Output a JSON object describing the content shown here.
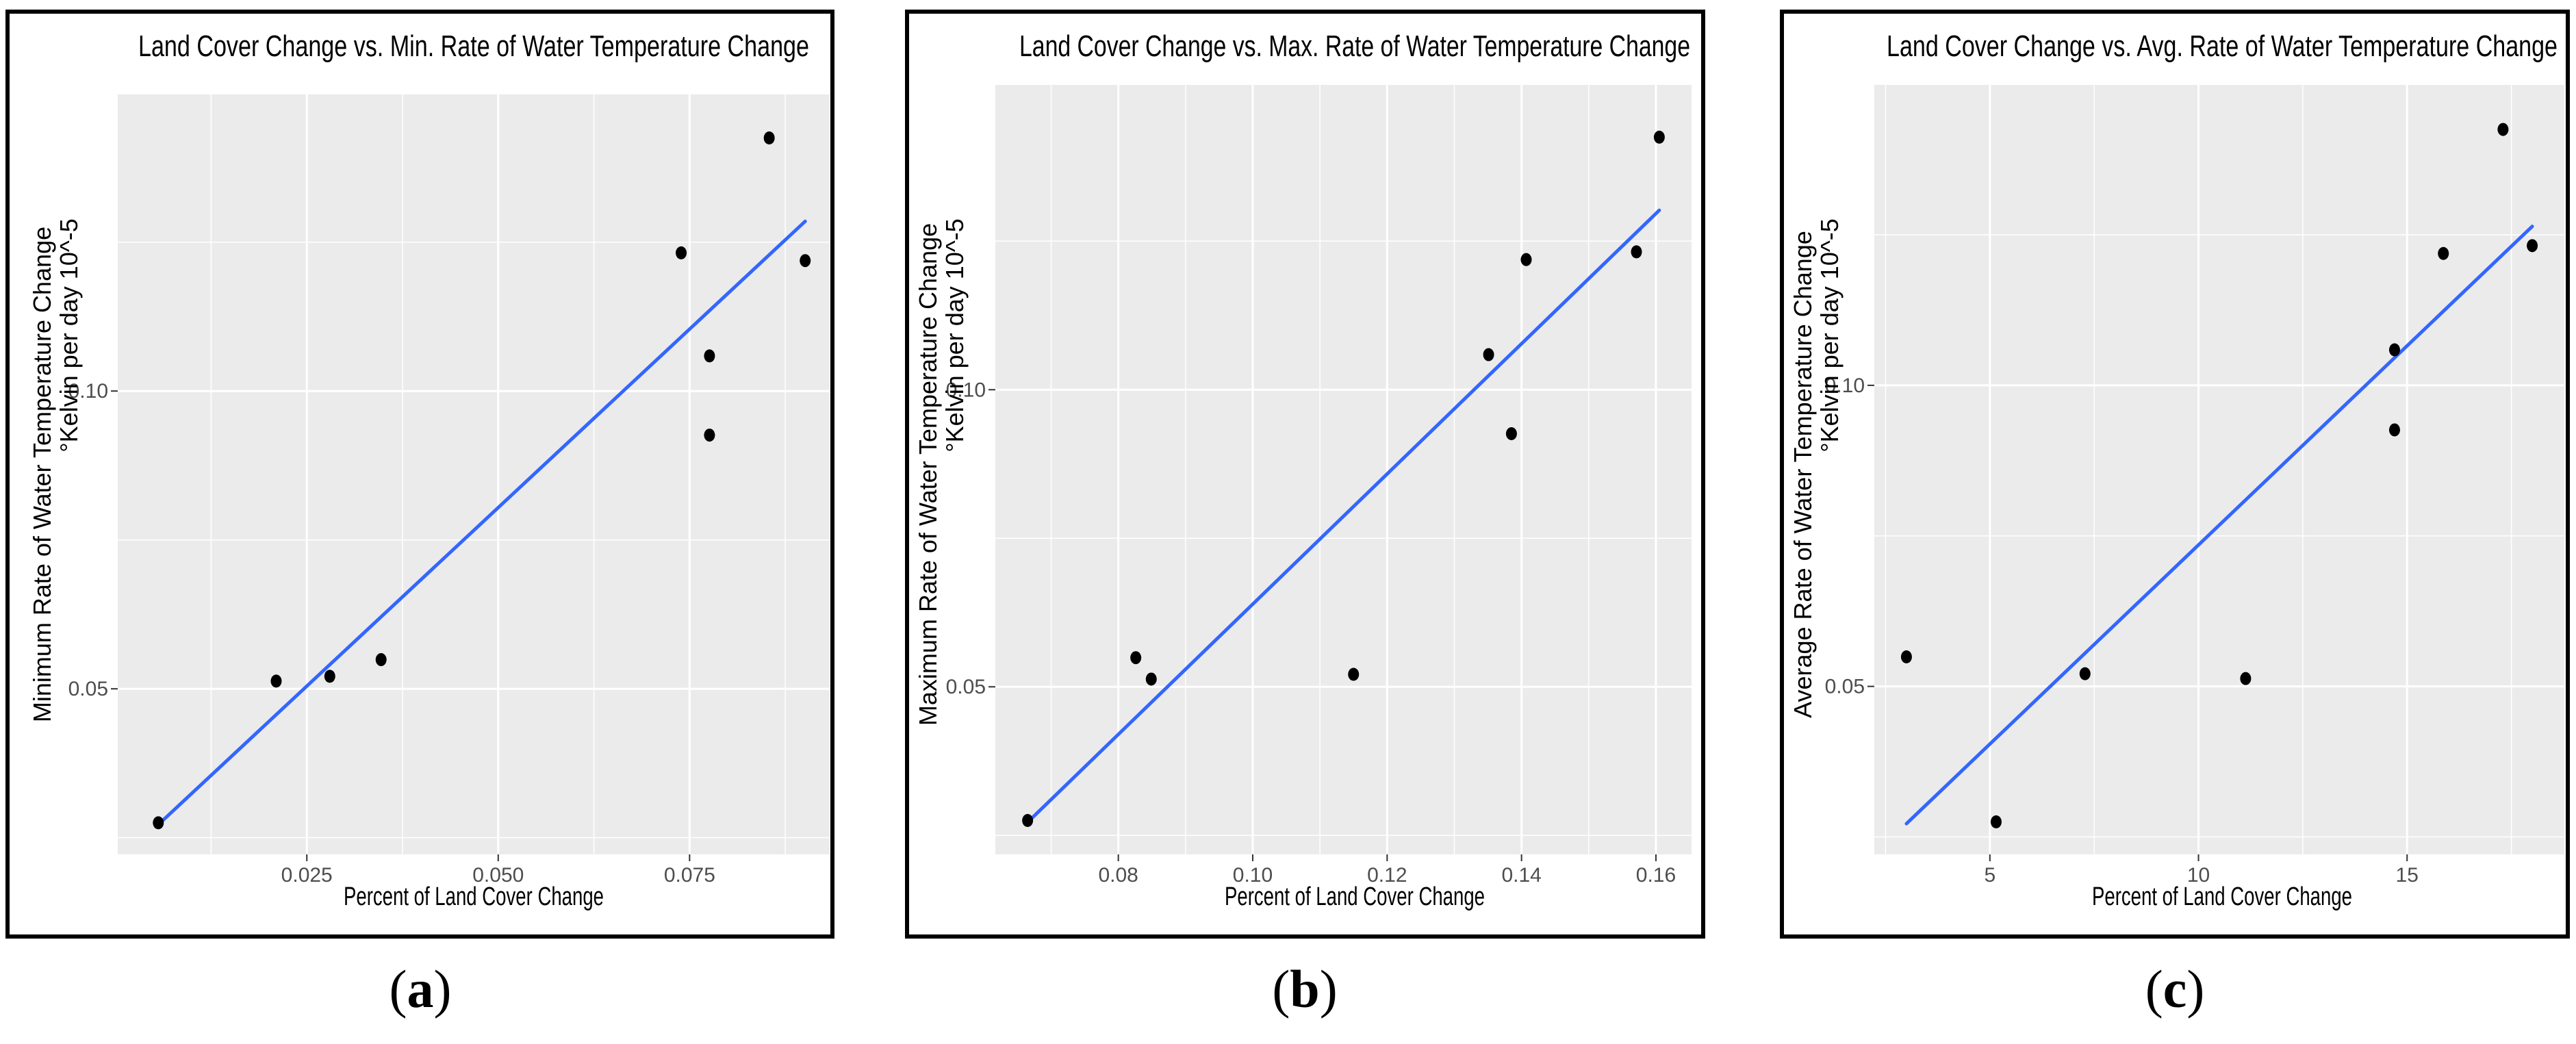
{
  "colors": {
    "panel_background": "#ebebeb",
    "gridline": "#ffffff",
    "point": "#000000",
    "fit_line": "#3366ff",
    "text": "#000000",
    "tick_text": "#4d4d4d"
  },
  "chart_data": [
    {
      "id": "a",
      "type": "scatter",
      "title": "Land Cover Change vs. Min. Rate of Water Temperature Change",
      "xlabel": "Percent of Land Cover Change",
      "ylabel": "Minimum Rate of Water Temperature Change",
      "ylabel_units": "°Kelvin per day  10^-5",
      "caption_open": "(",
      "caption_letter": "a",
      "caption_close": ")",
      "xlim": [
        0.0003,
        0.0933
      ],
      "ylim": [
        0.0222,
        0.1498
      ],
      "xticks": [
        {
          "value": 0.025,
          "label": "0.025"
        },
        {
          "value": 0.05,
          "label": "0.050"
        },
        {
          "value": 0.075,
          "label": "0.075"
        }
      ],
      "yticks": [
        {
          "value": 0.05,
          "label": "0.05"
        },
        {
          "value": 0.1,
          "label": "0.10"
        }
      ],
      "points": [
        {
          "x": 0.0056,
          "y": 0.0275
        },
        {
          "x": 0.021,
          "y": 0.0513
        },
        {
          "x": 0.028,
          "y": 0.0521
        },
        {
          "x": 0.0347,
          "y": 0.0549
        },
        {
          "x": 0.0739,
          "y": 0.1232
        },
        {
          "x": 0.0776,
          "y": 0.1059
        },
        {
          "x": 0.0776,
          "y": 0.0926
        },
        {
          "x": 0.0854,
          "y": 0.1425
        },
        {
          "x": 0.0901,
          "y": 0.1219
        }
      ],
      "fit": {
        "x": [
          0.0056,
          0.0901
        ],
        "y": [
          0.0272,
          0.1285
        ]
      }
    },
    {
      "id": "b",
      "type": "scatter",
      "title": "Land Cover Change vs. Max. Rate of Water Temperature Change",
      "xlabel": "Percent of Land Cover Change",
      "ylabel": "Maximum Rate of Water Temperature Change",
      "ylabel_units": "°Kelvin per day  10^-5",
      "caption_open": "(",
      "caption_letter": "b",
      "caption_close": ")",
      "xlim": [
        0.0617,
        0.1653
      ],
      "ylim": [
        0.0218,
        0.1513
      ],
      "xticks": [
        {
          "value": 0.08,
          "label": "0.08"
        },
        {
          "value": 0.1,
          "label": "0.10"
        },
        {
          "value": 0.12,
          "label": "0.12"
        },
        {
          "value": 0.14,
          "label": "0.14"
        },
        {
          "value": 0.16,
          "label": "0.16"
        }
      ],
      "yticks": [
        {
          "value": 0.05,
          "label": "0.05"
        },
        {
          "value": 0.1,
          "label": "0.10"
        }
      ],
      "points": [
        {
          "x": 0.0665,
          "y": 0.0275
        },
        {
          "x": 0.0826,
          "y": 0.0549
        },
        {
          "x": 0.0849,
          "y": 0.0513
        },
        {
          "x": 0.115,
          "y": 0.0521
        },
        {
          "x": 0.1351,
          "y": 0.1059
        },
        {
          "x": 0.1385,
          "y": 0.0926
        },
        {
          "x": 0.1407,
          "y": 0.1219
        },
        {
          "x": 0.1571,
          "y": 0.1232
        },
        {
          "x": 0.1605,
          "y": 0.1425
        }
      ],
      "fit": {
        "x": [
          0.0665,
          0.1605
        ],
        "y": [
          0.0272,
          0.1302
        ]
      }
    },
    {
      "id": "c",
      "type": "scatter",
      "title": "Land Cover Change vs. Avg. Rate of Water Temperature Change",
      "xlabel": "Percent of Land Cover Change",
      "ylabel": "Average Rate of Water Temperature Change",
      "ylabel_units": "°Kelvin per day  10^-5",
      "caption_open": "(",
      "caption_letter": "c",
      "caption_close": ")",
      "xlim": [
        2.23,
        18.77
      ],
      "ylim": [
        0.0221,
        0.1499
      ],
      "xticks": [
        {
          "value": 5,
          "label": "5"
        },
        {
          "value": 10,
          "label": "10"
        },
        {
          "value": 15,
          "label": "15"
        }
      ],
      "yticks": [
        {
          "value": 0.05,
          "label": "0.05"
        },
        {
          "value": 0.1,
          "label": "0.10"
        }
      ],
      "points": [
        {
          "x": 3.0,
          "y": 0.0549
        },
        {
          "x": 5.15,
          "y": 0.0275
        },
        {
          "x": 7.28,
          "y": 0.0521
        },
        {
          "x": 11.13,
          "y": 0.0513
        },
        {
          "x": 14.7,
          "y": 0.1059
        },
        {
          "x": 14.7,
          "y": 0.0926
        },
        {
          "x": 15.87,
          "y": 0.1219
        },
        {
          "x": 17.3,
          "y": 0.1425
        },
        {
          "x": 18.0,
          "y": 0.1232
        }
      ],
      "fit": {
        "x": [
          3.0,
          18.0
        ],
        "y": [
          0.0272,
          0.1264
        ]
      }
    }
  ]
}
